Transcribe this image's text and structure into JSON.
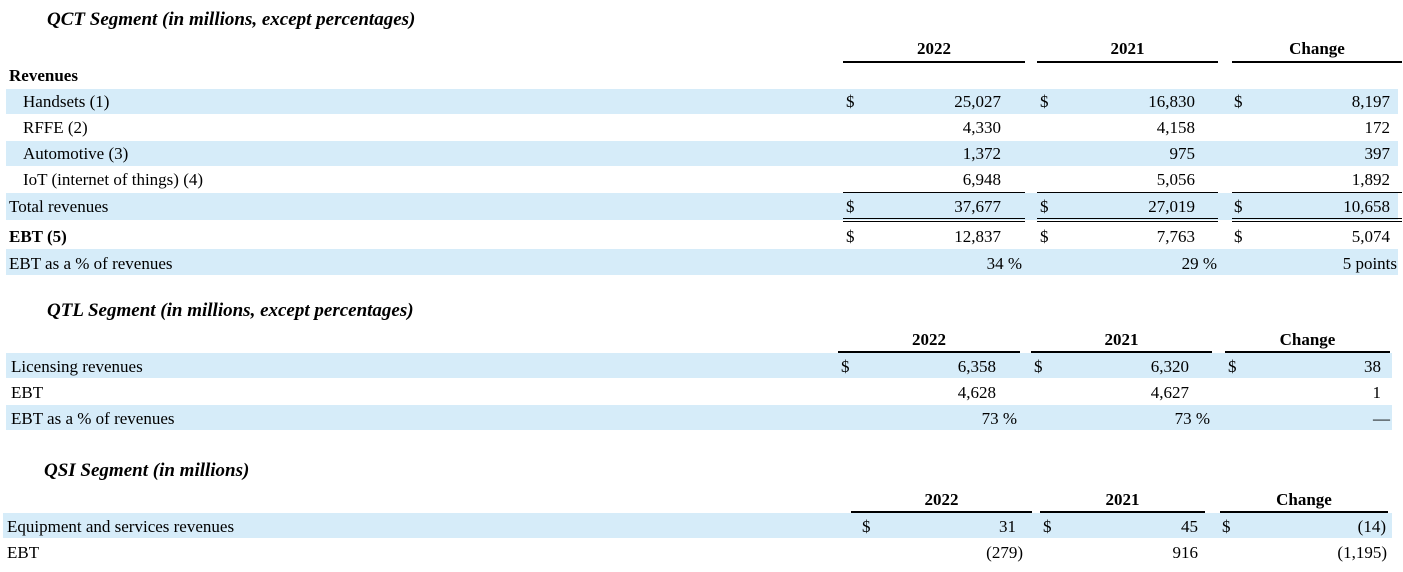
{
  "qct": {
    "title": "QCT Segment (in millions, except percentages)",
    "headers": [
      "2022",
      "2021",
      "Change"
    ],
    "revenues_label": "Revenues",
    "currency": "$",
    "rows": [
      {
        "label": "Handsets (1)",
        "v2022": "25,027",
        "v2021": "16,830",
        "change": "8,197"
      },
      {
        "label": "RFFE (2)",
        "v2022": "4,330",
        "v2021": "4,158",
        "change": "172"
      },
      {
        "label": "Automotive (3)",
        "v2022": "1,372",
        "v2021": "975",
        "change": "397"
      },
      {
        "label": "IoT (internet of things) (4)",
        "v2022": "6,948",
        "v2021": "5,056",
        "change": "1,892"
      },
      {
        "label": "Total revenues",
        "v2022": "37,677",
        "v2021": "27,019",
        "change": "10,658"
      },
      {
        "label": "EBT (5)",
        "v2022": "12,837",
        "v2021": "7,763",
        "change": "5,074"
      },
      {
        "label": "EBT as a % of revenues",
        "v2022": "34 %",
        "v2021": "29 %",
        "change": "5 points"
      }
    ]
  },
  "qtl": {
    "title": "QTL Segment (in millions, except percentages)",
    "headers": [
      "2022",
      "2021",
      "Change"
    ],
    "currency": "$",
    "rows": [
      {
        "label": "Licensing revenues",
        "v2022": "6,358",
        "v2021": "6,320",
        "change": "38"
      },
      {
        "label": "EBT",
        "v2022": "4,628",
        "v2021": "4,627",
        "change": "1"
      },
      {
        "label": "EBT as a % of revenues",
        "v2022": "73 %",
        "v2021": "73 %",
        "change": "—"
      }
    ]
  },
  "qsi": {
    "title": "QSI Segment (in millions)",
    "headers": [
      "2022",
      "2021",
      "Change"
    ],
    "currency": "$",
    "rows": [
      {
        "label": "Equipment and services revenues",
        "v2022": "31",
        "v2021": "45",
        "change": "(14)"
      },
      {
        "label": "EBT",
        "v2022": "(279)",
        "v2021": "916",
        "change": "(1,195)"
      }
    ]
  }
}
